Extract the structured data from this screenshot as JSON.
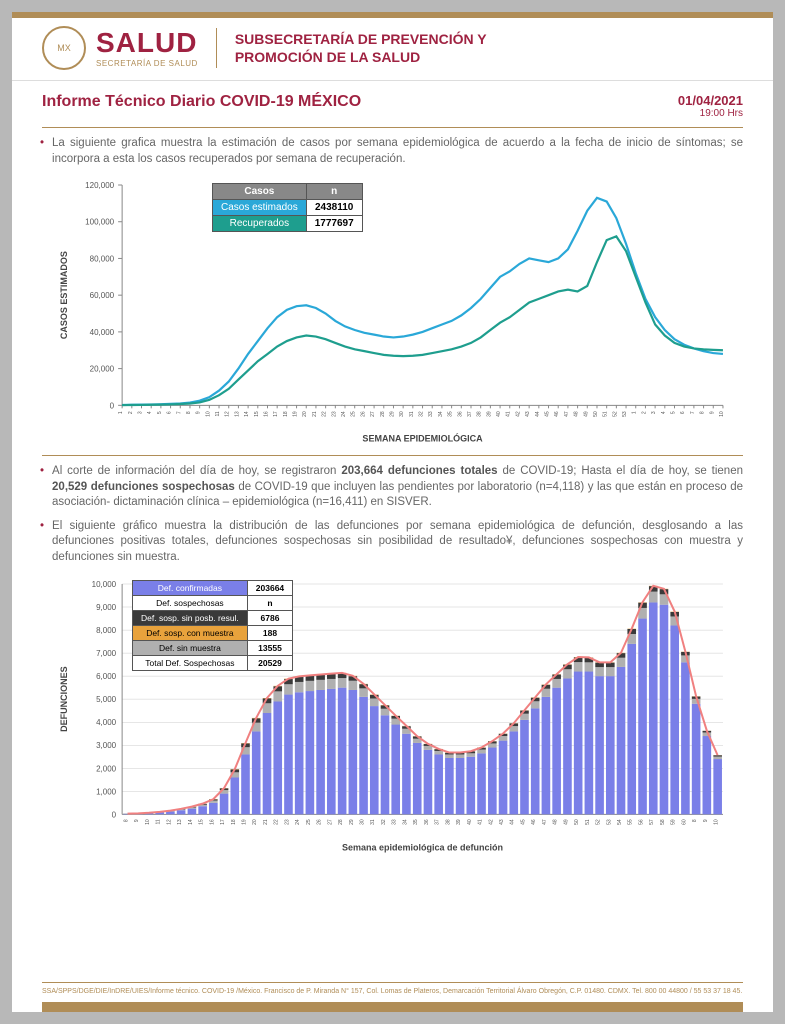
{
  "header": {
    "org": "SALUD",
    "org_sub": "SECRETARÍA DE SALUD",
    "subsec_line1": "SUBSECRETARÍA DE PREVENCIÓN Y",
    "subsec_line2": "PROMOCIÓN DE LA SALUD"
  },
  "title": "Informe Técnico Diario COVID-19 MÉXICO",
  "date": "01/04/2021",
  "time": "19:00 Hrs",
  "para1": "La siguiente grafica muestra la estimación de casos por semana epidemiológica de acuerdo a la fecha de inicio de síntomas; se incorpora a esta los casos recuperados por semana de recuperación.",
  "chart1": {
    "type": "line",
    "title_y": "CASOS ESTIMADOS",
    "title_x": "SEMANA EPIDEMIOLÓGICA",
    "ylim": [
      0,
      120000
    ],
    "ytick_step": 20000,
    "yticks": [
      "0",
      "20,000",
      "40,000",
      "60,000",
      "80,000",
      "100,000",
      "120,000"
    ],
    "x_count": 63,
    "grid_color": "#888",
    "bg": "#ffffff",
    "legend": {
      "header_bg": "#888888",
      "row1_bg": "#2aa8d8",
      "row2_bg": "#1e9e8e",
      "header": [
        "Casos",
        "n"
      ],
      "rows": [
        [
          "Casos estimados",
          "2438110"
        ],
        [
          "Recuperados",
          "1777697"
        ]
      ]
    },
    "series": [
      {
        "name": "estimados",
        "color": "#2aa8d8",
        "width": 2.2,
        "values": [
          200,
          300,
          400,
          500,
          600,
          800,
          1000,
          1500,
          2500,
          4500,
          8000,
          13000,
          20000,
          28000,
          35000,
          42000,
          48000,
          52000,
          54000,
          54500,
          53000,
          50000,
          46000,
          43000,
          41000,
          39500,
          38500,
          37500,
          37000,
          37500,
          38500,
          40000,
          42000,
          44000,
          46000,
          49000,
          53000,
          58000,
          64000,
          70000,
          73000,
          77000,
          80000,
          79000,
          78000,
          80000,
          85000,
          95000,
          106000,
          113000,
          111000,
          102000,
          88000,
          72000,
          58000,
          48000,
          41000,
          36000,
          33000,
          31000,
          29500,
          28500,
          28000
        ]
      },
      {
        "name": "recuperados",
        "color": "#1e9e8e",
        "width": 2.2,
        "values": [
          100,
          150,
          200,
          300,
          400,
          500,
          700,
          1000,
          1600,
          3000,
          5500,
          9000,
          14000,
          19000,
          24000,
          28000,
          32000,
          35000,
          37000,
          38000,
          37500,
          36000,
          34000,
          32000,
          30500,
          29500,
          28500,
          27500,
          27000,
          26800,
          27000,
          27500,
          28500,
          29500,
          30500,
          32000,
          34000,
          37000,
          41000,
          45000,
          48000,
          52000,
          56000,
          58000,
          60000,
          62000,
          63000,
          62000,
          65000,
          78000,
          90000,
          92000,
          84000,
          70000,
          56000,
          44000,
          38000,
          34000,
          32000,
          31000,
          30500,
          30200,
          30000
        ]
      }
    ]
  },
  "para2_a": "Al corte de información del día de hoy, se registraron ",
  "para2_b": "203,664 defunciones totales",
  "para2_c": " de COVID-19; Hasta el día de hoy, se tienen ",
  "para2_d": "20,529 defunciones sospechosas",
  "para2_e": " de COVID-19 que incluyen las pendientes por laboratorio (n=4,118) y las que están en proceso de asociación- dictaminación clínica – epidemiológica (n=16,411) en SISVER.",
  "para3": "El siguiente gráfico muestra la distribución de las defunciones por semana epidemiológica de defunción, desglosando a las defunciones positivas totales, defunciones sospechosas sin posibilidad de resultado¥, defunciones sospechosas con muestra y defunciones sin muestra.",
  "chart2": {
    "type": "bar+line",
    "title_y": "DEFUNCIONES",
    "title_x": "Semana epidemiológica de defunción",
    "ylim": [
      0,
      10000
    ],
    "ytick_step": 1000,
    "yticks": [
      "0",
      "1,000",
      "2,000",
      "3,000",
      "4,000",
      "5,000",
      "6,000",
      "7,000",
      "8,000",
      "9,000",
      "10,000"
    ],
    "x_count": 56,
    "bar_color_confirmed": "#7a7fe8",
    "bar_color_sinmuestra": "#b0b0b0",
    "bar_color_sinresul": "#3a3a3a",
    "bar_color_conmuestra": "#e8a23c",
    "line_color": "#f08080",
    "bg": "#ffffff",
    "legend": {
      "pos": "top-left",
      "rows": [
        {
          "bg": "#7a7fe8",
          "fg": "#ffffff",
          "label": "Def. confirmadas",
          "value": "203664"
        },
        {
          "bg": "#ffffff",
          "fg": "#000000",
          "label": "Def. sospechosas",
          "value": "n"
        },
        {
          "bg": "#3a3a3a",
          "fg": "#ffffff",
          "label": "Def. sosp. sin posb. resul.",
          "value": "6786"
        },
        {
          "bg": "#e8a23c",
          "fg": "#000000",
          "label": "Def. sosp. con  muestra",
          "value": "188"
        },
        {
          "bg": "#b0b0b0",
          "fg": "#000000",
          "label": "Def. sin muestra",
          "value": "13555"
        },
        {
          "bg": "#ffffff",
          "fg": "#000000",
          "label": "Total Def. Sospechosas",
          "value": "20529"
        }
      ]
    },
    "confirmed": [
      20,
      30,
      50,
      80,
      120,
      180,
      250,
      350,
      500,
      900,
      1600,
      2600,
      3600,
      4400,
      4900,
      5200,
      5300,
      5350,
      5400,
      5450,
      5500,
      5400,
      5100,
      4700,
      4300,
      3900,
      3500,
      3100,
      2800,
      2600,
      2450,
      2450,
      2500,
      2650,
      2900,
      3200,
      3600,
      4100,
      4600,
      5100,
      5500,
      5900,
      6200,
      6200,
      6000,
      6000,
      6400,
      7400,
      8500,
      9200,
      9100,
      8200,
      6600,
      4800,
      3400,
      2400
    ],
    "sinmuestra": [
      5,
      8,
      12,
      18,
      25,
      35,
      50,
      70,
      100,
      150,
      230,
      320,
      380,
      420,
      440,
      450,
      450,
      445,
      440,
      430,
      420,
      400,
      370,
      330,
      290,
      250,
      220,
      190,
      170,
      155,
      150,
      150,
      155,
      165,
      180,
      200,
      230,
      270,
      310,
      350,
      380,
      400,
      410,
      400,
      390,
      390,
      400,
      430,
      460,
      470,
      450,
      390,
      300,
      210,
      150,
      110
    ],
    "sinresul": [
      3,
      5,
      7,
      10,
      14,
      20,
      28,
      38,
      52,
      80,
      120,
      160,
      190,
      210,
      220,
      225,
      225,
      222,
      218,
      213,
      207,
      196,
      181,
      162,
      142,
      123,
      108,
      94,
      84,
      77,
      74,
      74,
      77,
      82,
      90,
      100,
      116,
      136,
      156,
      176,
      191,
      201,
      207,
      202,
      196,
      196,
      201,
      216,
      232,
      237,
      227,
      196,
      151,
      106,
      76,
      56
    ],
    "conmuestra": [
      1,
      1,
      2,
      2,
      3,
      4,
      5,
      6,
      8,
      10,
      13,
      15,
      16,
      17,
      18,
      18,
      18,
      18,
      17,
      17,
      16,
      15,
      14,
      12,
      11,
      10,
      9,
      8,
      7,
      7,
      7,
      7,
      7,
      7,
      8,
      8,
      9,
      10,
      11,
      12,
      13,
      13,
      13,
      13,
      12,
      12,
      13,
      14,
      14,
      15,
      14,
      12,
      10,
      7,
      5,
      4
    ]
  },
  "footer": "SSA/SPPS/DGE/DIE/InDRE/UIES/Informe técnico. COVID-19 /México. Francisco de P. Miranda N° 157, Col. Lomas de Plateros, Demarcación Territorial Álvaro Obregón, C.P. 01480. CDMX. Tel. 800 00 44800 / 55 53 37 18 45."
}
